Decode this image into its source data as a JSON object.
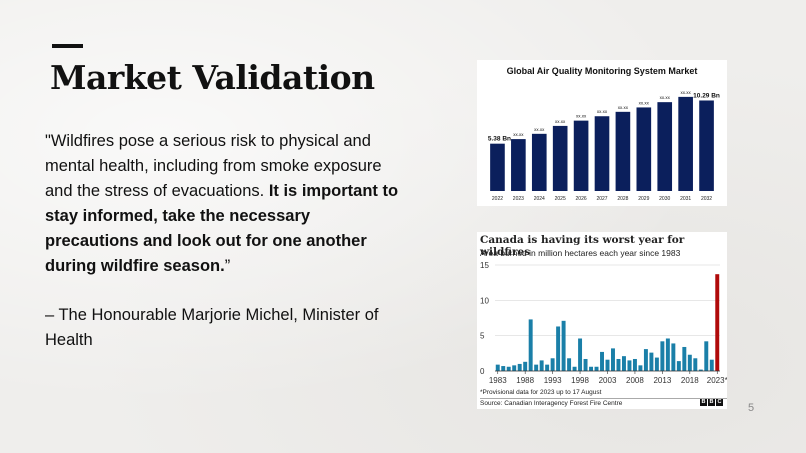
{
  "slide": {
    "title": "Market Validation",
    "quote_normal": "\"Wildfires pose a serious risk to physical and mental health, including from smoke exposure and the stress of evacuations. ",
    "quote_bold": "It is important to stay informed, take the necessary precautions and look out for one another during wildfire season.",
    "quote_close": "”",
    "attribution": "– The Honourable Marjorie Michel, Minister of Health",
    "page_number": "5"
  },
  "colors": {
    "background": "#efeeec",
    "navy_bar": "#0b1f5c",
    "teal_bar": "#1a7fa8",
    "red_bar": "#b00a0a"
  },
  "chart_data": [
    {
      "type": "bar",
      "title": "Global Air Quality Monitoring System Market",
      "categories": [
        "2022",
        "2023",
        "2024",
        "2025",
        "2026",
        "2027",
        "2028",
        "2029",
        "2030",
        "2031",
        "2032"
      ],
      "values": [
        5.38,
        5.9,
        6.5,
        7.4,
        8.0,
        8.5,
        9.0,
        9.5,
        10.1,
        10.7,
        10.29
      ],
      "data_labels": [
        "5.38 Bn",
        "xx.xx",
        "xx.xx",
        "xx.xx",
        "xx.xx",
        "xx.xx",
        "xx.xx",
        "xx.xx",
        "xx.xx",
        "xx.xx",
        "10.29 Bn"
      ]
    },
    {
      "type": "bar",
      "title": "Canada is having its worst year for wildfires",
      "subtitle": "Area burned in million hectares each year since 1983",
      "categories": [
        "1983",
        "1984",
        "1985",
        "1986",
        "1987",
        "1988",
        "1989",
        "1990",
        "1991",
        "1992",
        "1993",
        "1994",
        "1995",
        "1996",
        "1997",
        "1998",
        "1999",
        "2000",
        "2001",
        "2002",
        "2003",
        "2004",
        "2005",
        "2006",
        "2007",
        "2008",
        "2009",
        "2010",
        "2011",
        "2012",
        "2013",
        "2014",
        "2015",
        "2016",
        "2017",
        "2018",
        "2019",
        "2020",
        "2021",
        "2022",
        "2023"
      ],
      "values": [
        0.9,
        0.7,
        0.6,
        0.8,
        1.0,
        1.3,
        7.3,
        0.9,
        1.5,
        0.9,
        1.8,
        6.3,
        7.1,
        1.8,
        0.6,
        4.6,
        1.7,
        0.6,
        0.6,
        2.7,
        1.6,
        3.2,
        1.7,
        2.1,
        1.5,
        1.7,
        0.8,
        3.1,
        2.6,
        1.9,
        4.2,
        4.6,
        3.9,
        1.4,
        3.4,
        2.3,
        1.8,
        0.2,
        4.2,
        1.6,
        13.7
      ],
      "highlight_last": true,
      "yticks": [
        "0",
        "5",
        "10",
        "15"
      ],
      "ylim": [
        0,
        15
      ],
      "xticks": [
        "1983",
        "1988",
        "1993",
        "1998",
        "2003",
        "2008",
        "2013",
        "2018",
        "2023*"
      ],
      "note": "*Provisional data for 2023 up to 17 August",
      "source": "Source: Canadian Interagency Forest Fire Centre",
      "logo": [
        "B",
        "B",
        "C"
      ]
    }
  ]
}
